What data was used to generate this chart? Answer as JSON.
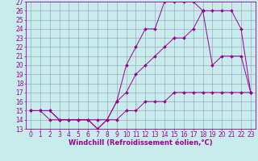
{
  "title": "",
  "xlabel": "Windchill (Refroidissement éolien,°C)",
  "ylabel": "",
  "xlim": [
    -0.5,
    23.5
  ],
  "ylim": [
    13,
    27
  ],
  "xticks": [
    0,
    1,
    2,
    3,
    4,
    5,
    6,
    7,
    8,
    9,
    10,
    11,
    12,
    13,
    14,
    15,
    16,
    17,
    18,
    19,
    20,
    21,
    22,
    23
  ],
  "yticks": [
    13,
    14,
    15,
    16,
    17,
    18,
    19,
    20,
    21,
    22,
    23,
    24,
    25,
    26,
    27
  ],
  "bg_color": "#c8ecec",
  "line_color": "#990099",
  "grid_color": "#9999bb",
  "line1_x": [
    0,
    1,
    2,
    3,
    4,
    5,
    6,
    7,
    8,
    9,
    10,
    11,
    12,
    13,
    14,
    15,
    16,
    17,
    18,
    19,
    20,
    21,
    22,
    23
  ],
  "line1_y": [
    15,
    15,
    15,
    14,
    14,
    14,
    14,
    13,
    14,
    16,
    17,
    19,
    20,
    21,
    22,
    23,
    23,
    24,
    26,
    26,
    26,
    26,
    24,
    17
  ],
  "line2_x": [
    0,
    1,
    2,
    3,
    4,
    5,
    6,
    7,
    8,
    9,
    10,
    11,
    12,
    13,
    14,
    15,
    16,
    17,
    18,
    19,
    20,
    21,
    22,
    23
  ],
  "line2_y": [
    15,
    15,
    15,
    14,
    14,
    14,
    14,
    13,
    14,
    16,
    20,
    22,
    24,
    24,
    27,
    27,
    27,
    27,
    26,
    20,
    21,
    21,
    21,
    17
  ],
  "line3_x": [
    0,
    1,
    2,
    3,
    4,
    5,
    6,
    7,
    8,
    9,
    10,
    11,
    12,
    13,
    14,
    15,
    16,
    17,
    18,
    19,
    20,
    21,
    22,
    23
  ],
  "line3_y": [
    15,
    15,
    14,
    14,
    14,
    14,
    14,
    14,
    14,
    14,
    15,
    15,
    16,
    16,
    16,
    17,
    17,
    17,
    17,
    17,
    17,
    17,
    17,
    17
  ],
  "marker_size": 2,
  "font_size": 5.5,
  "xlabel_fontsize": 6,
  "linewidth": 0.7
}
